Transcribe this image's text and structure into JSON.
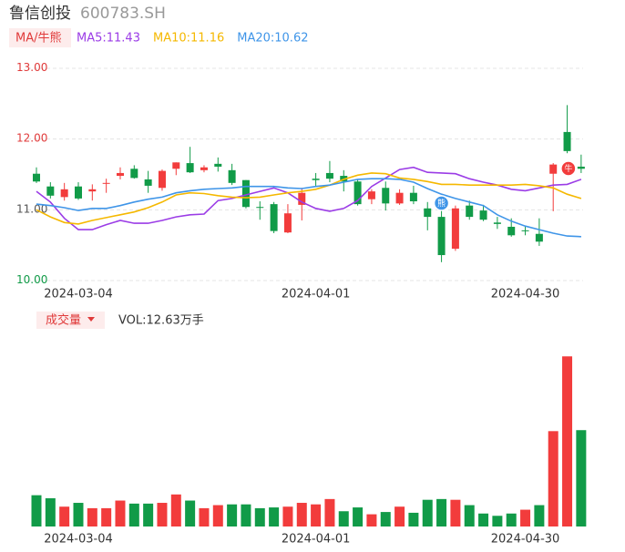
{
  "header": {
    "name": "鲁信创投",
    "code": "600783.SH"
  },
  "chart_data": [
    {
      "type": "candlestick",
      "toggle": "MA/牛熊",
      "categories": [
        null,
        null,
        null,
        "2024-03-04",
        null,
        null,
        null,
        null,
        null,
        null,
        null,
        null,
        null,
        null,
        null,
        null,
        null,
        null,
        null,
        null,
        "2024-04-01",
        null,
        null,
        null,
        null,
        null,
        null,
        null,
        null,
        null,
        null,
        null,
        null,
        null,
        null,
        "2024-04-30",
        null,
        null,
        null,
        null
      ],
      "open": [
        11.51,
        11.33,
        11.18,
        11.33,
        11.26,
        11.37,
        11.48,
        11.58,
        11.43,
        11.31,
        11.58,
        11.66,
        11.56,
        11.65,
        11.56,
        11.42,
        11.04,
        11.08,
        10.68,
        11.07,
        11.44,
        11.52,
        11.48,
        11.4,
        11.15,
        11.31,
        11.09,
        11.24,
        11.02,
        10.9,
        10.45,
        11.06,
        10.99,
        10.82,
        10.76,
        10.71,
        10.66,
        11.51,
        12.1,
        11.61
      ],
      "high": [
        11.6,
        11.39,
        11.38,
        11.39,
        11.36,
        11.44,
        11.6,
        11.63,
        11.55,
        11.57,
        11.67,
        11.89,
        11.63,
        11.74,
        11.65,
        11.42,
        11.12,
        11.11,
        11.08,
        11.31,
        11.52,
        11.69,
        11.56,
        11.43,
        11.29,
        11.4,
        11.29,
        11.34,
        11.11,
        11.02,
        11.06,
        11.13,
        11.07,
        10.9,
        10.88,
        10.77,
        10.88,
        11.66,
        12.48,
        11.78
      ],
      "low": [
        11.38,
        11.16,
        11.13,
        11.14,
        11.13,
        11.24,
        11.43,
        11.44,
        11.24,
        11.27,
        11.49,
        11.52,
        11.53,
        11.54,
        11.35,
        11.02,
        10.86,
        10.67,
        10.67,
        10.85,
        11.33,
        11.39,
        11.26,
        11.06,
        11.08,
        10.99,
        11.07,
        11.08,
        10.71,
        10.26,
        10.42,
        10.86,
        10.84,
        10.73,
        10.62,
        10.64,
        10.49,
        10.98,
        11.8,
        11.52
      ],
      "close": [
        11.4,
        11.2,
        11.29,
        11.16,
        11.29,
        11.38,
        11.52,
        11.45,
        11.34,
        11.55,
        11.67,
        11.53,
        11.6,
        11.61,
        11.38,
        11.04,
        11.03,
        10.7,
        10.95,
        11.24,
        11.42,
        11.44,
        11.4,
        11.08,
        11.26,
        11.09,
        11.24,
        11.12,
        10.9,
        10.36,
        11.02,
        10.9,
        10.86,
        10.8,
        10.64,
        10.7,
        10.55,
        11.64,
        11.83,
        11.58
      ],
      "up_color": "#f23c3c",
      "down_color": "#119b48",
      "ylim": [
        10,
        13
      ],
      "yticks": [
        {
          "value": 13,
          "label": "13.00"
        },
        {
          "value": 12,
          "label": "12.00"
        },
        {
          "value": 11,
          "label": "11.00"
        },
        {
          "value": 10,
          "label": "10.00"
        }
      ],
      "ytick_colors": [
        "#e03a3a",
        "#e03a3a",
        "#555555",
        "#119b48"
      ],
      "grid": true,
      "annotations": [
        "熊",
        "牛"
      ],
      "series": [
        {
          "name": "MA5:11.43",
          "color": "#9b3ce6",
          "values": [
            11.26,
            11.11,
            10.88,
            10.72,
            10.72,
            10.79,
            10.85,
            10.81,
            10.81,
            10.85,
            10.9,
            10.93,
            10.94,
            11.13,
            11.16,
            11.21,
            11.26,
            11.31,
            11.24,
            11.11,
            11.02,
            10.98,
            11.02,
            11.13,
            11.33,
            11.45,
            11.57,
            11.6,
            11.53,
            11.52,
            11.51,
            11.44,
            11.39,
            11.35,
            11.29,
            11.27,
            11.31,
            11.35,
            11.36,
            11.43
          ]
        },
        {
          "name": "MA10:11.16",
          "color": "#f5b800",
          "values": [
            11.0,
            10.9,
            10.82,
            10.8,
            10.85,
            10.89,
            10.93,
            10.97,
            11.03,
            11.11,
            11.21,
            11.24,
            11.23,
            11.2,
            11.18,
            11.17,
            11.18,
            11.21,
            11.24,
            11.26,
            11.29,
            11.35,
            11.43,
            11.49,
            11.52,
            11.51,
            11.45,
            11.43,
            11.4,
            11.36,
            11.36,
            11.35,
            11.35,
            11.35,
            11.35,
            11.36,
            11.34,
            11.31,
            11.22,
            11.16
          ]
        },
        {
          "name": "MA20:10.62",
          "color": "#3f95e8",
          "values": [
            11.08,
            11.06,
            11.03,
            10.99,
            11.02,
            11.02,
            11.06,
            11.11,
            11.15,
            11.18,
            11.24,
            11.27,
            11.29,
            11.3,
            11.31,
            11.33,
            11.33,
            11.33,
            11.31,
            11.3,
            11.33,
            11.35,
            11.39,
            11.43,
            11.44,
            11.44,
            11.43,
            11.39,
            11.3,
            11.22,
            11.16,
            11.11,
            11.06,
            10.93,
            10.84,
            10.77,
            10.72,
            10.67,
            10.63,
            10.62
          ]
        }
      ]
    },
    {
      "type": "bar",
      "title": "成交量",
      "label": "VOL:12.63万手",
      "categories": [
        null,
        null,
        null,
        "2024-03-04",
        null,
        null,
        null,
        null,
        null,
        null,
        null,
        null,
        null,
        null,
        null,
        null,
        null,
        null,
        null,
        null,
        "2024-04-01",
        null,
        null,
        null,
        null,
        null,
        null,
        null,
        null,
        null,
        null,
        null,
        null,
        null,
        null,
        "2024-04-30",
        null,
        null,
        null,
        null
      ],
      "values": [
        4.1,
        3.7,
        2.6,
        3.1,
        2.4,
        2.4,
        3.4,
        3.0,
        3.0,
        3.1,
        4.2,
        3.4,
        2.4,
        2.8,
        2.9,
        2.9,
        2.4,
        2.5,
        2.6,
        3.1,
        2.9,
        3.6,
        2.0,
        2.5,
        1.6,
        1.9,
        2.6,
        1.8,
        3.5,
        3.6,
        3.5,
        2.8,
        1.7,
        1.4,
        1.7,
        2.2,
        2.8,
        12.5,
        22.3,
        12.63
      ],
      "ylim": [
        0,
        24
      ]
    }
  ]
}
